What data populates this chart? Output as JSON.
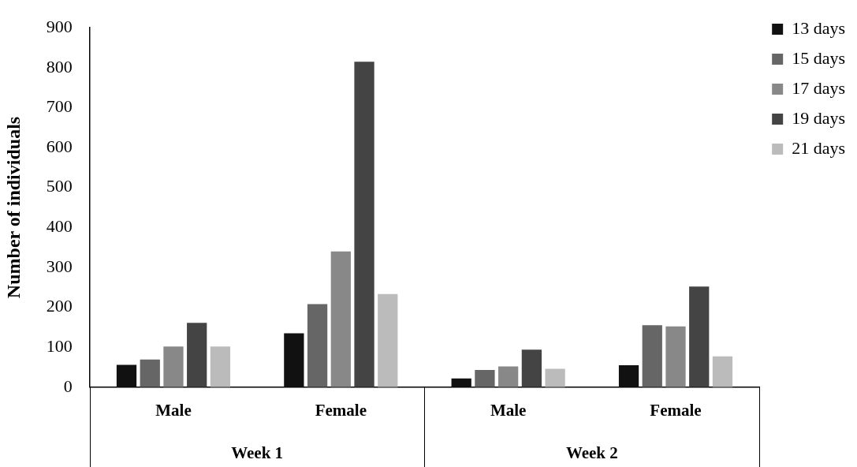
{
  "chart_data": {
    "type": "bar",
    "ylabel": "Number of individuals",
    "categories": [
      "Male",
      "Female",
      "Male",
      "Female"
    ],
    "annotations": [
      "Week 1",
      "Week 2"
    ],
    "series": [
      {
        "name": "13 days",
        "color": "#111111",
        "values": [
          56,
          135,
          22,
          55
        ]
      },
      {
        "name": "15 days",
        "color": "#666666",
        "values": [
          69,
          208,
          43,
          155
        ]
      },
      {
        "name": "17 days",
        "color": "#888888",
        "values": [
          102,
          340,
          52,
          152
        ]
      },
      {
        "name": "19 days",
        "color": "#444444",
        "values": [
          161,
          815,
          94,
          252
        ]
      },
      {
        "name": "21 days",
        "color": "#bbbbbb",
        "values": [
          102,
          233,
          46,
          77
        ]
      }
    ],
    "ylim": [
      0,
      900
    ],
    "yticks": [
      0,
      100,
      200,
      300,
      400,
      500,
      600,
      700,
      800,
      900
    ],
    "grid": false,
    "legend": "top right"
  }
}
